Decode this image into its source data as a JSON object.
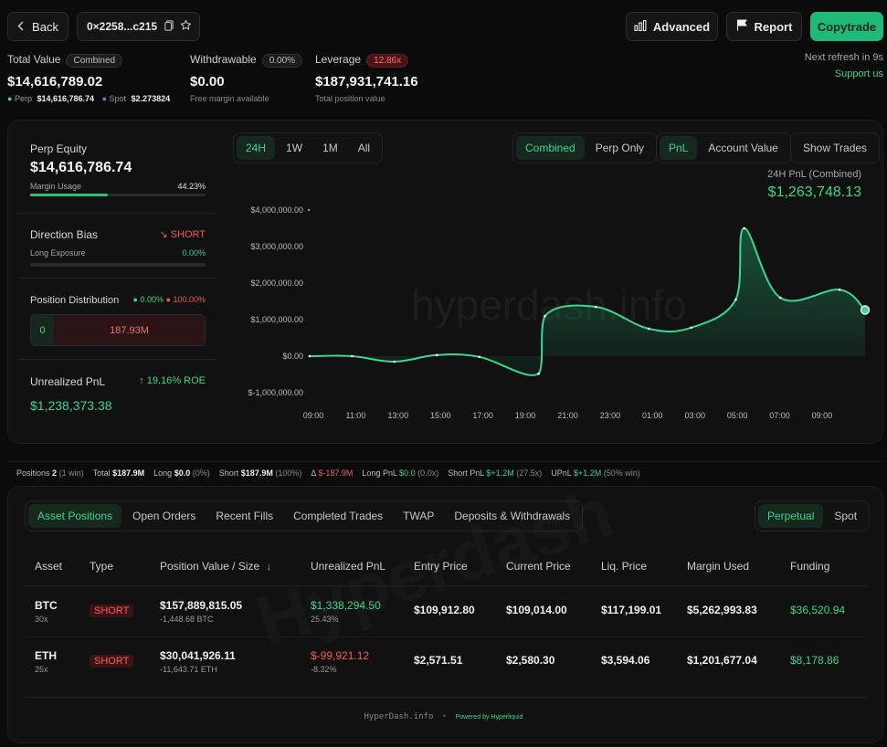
{
  "header": {
    "back_label": "Back",
    "address": "0×2258...c215",
    "advanced_label": "Advanced",
    "report_label": "Report",
    "copytrade_label": "Copytrade",
    "refresh_text": "Next refresh in 9s",
    "support_text": "Support us"
  },
  "summary": {
    "total_value_label": "Total Value",
    "total_value_pill": "Combined",
    "total_value": "$14,616,789.02",
    "perp_label": "Perp",
    "perp_value": "$14,616,786.74",
    "spot_label": "Spot",
    "spot_value": "$2.273824",
    "withdrawable_label": "Withdrawable",
    "withdrawable_pill": "0.00%",
    "withdrawable_value": "$0.00",
    "withdrawable_sub": "Free margin available",
    "leverage_label": "Leverage",
    "leverage_pill": "12.86x",
    "leverage_value": "$187,931,741.16",
    "leverage_sub": "Total position value"
  },
  "left_panel": {
    "perp_equity_label": "Perp Equity",
    "perp_equity_value": "$14,616,786.74",
    "margin_usage_label": "Margin Usage",
    "margin_usage_value": "44.23%",
    "margin_usage_fraction": 0.4423,
    "direction_bias_label": "Direction Bias",
    "direction_bias_value": "SHORT",
    "long_exposure_label": "Long Exposure",
    "long_exposure_value": "0.00%",
    "position_dist_label": "Position Distribution",
    "dist_long_pct": "0.00%",
    "dist_short_pct": "100.00%",
    "dist_long_amount": "0",
    "dist_short_amount": "187.93M",
    "unrealized_label": "Unrealized PnL",
    "roe_text": "19.16% ROE",
    "unrealized_value": "$1,238,373.38"
  },
  "chart_controls": {
    "ranges": [
      "24H",
      "1W",
      "1M",
      "All"
    ],
    "active_range": "24H",
    "modes": [
      "Combined",
      "Perp Only"
    ],
    "active_mode": "Combined",
    "metrics": [
      "PnL",
      "Account Value"
    ],
    "active_metric": "PnL",
    "show_trades_label": "Show Trades",
    "pnl_caption": "24H PnL (Combined)",
    "pnl_value": "$1,263,748.13",
    "watermark": "hyperdash.info"
  },
  "chart_data": {
    "type": "area",
    "title": "",
    "xlabel": "",
    "ylabel": "",
    "ylim": [
      -1000000,
      4000000
    ],
    "yticks": [
      "$4,000,000.00",
      "$3,000,000.00",
      "$2,000,000.00",
      "$1,000,000.00",
      "$0.00",
      "$-1,000,000.00"
    ],
    "xticks": [
      "09:00",
      "11:00",
      "13:00",
      "15:00",
      "17:00",
      "19:00",
      "21:00",
      "23:00",
      "01:00",
      "03:00",
      "05:00",
      "07:00",
      "09:00"
    ],
    "series": [
      {
        "x": [
          0,
          2,
          4,
          6,
          8,
          10.8,
          11.1,
          13.5,
          16,
          18,
          20.1,
          20.5,
          22.2,
          25,
          26.2
        ],
        "values": [
          0,
          0,
          -150000,
          30000,
          -20000,
          -480000,
          1100000,
          1350000,
          750000,
          780000,
          1550000,
          3500000,
          1600000,
          1820000,
          1263748
        ]
      }
    ],
    "color": "#3dd68c"
  },
  "stats_bar": {
    "positions_label": "Positions",
    "positions_value": "2",
    "positions_sub": "(1 win)",
    "total_label": "Total",
    "total_value": "$187.9M",
    "long_label": "Long",
    "long_value": "$0.0",
    "long_sub": "(0%)",
    "short_label": "Short",
    "short_value": "$187.9M",
    "short_sub": "(100%)",
    "delta_label": "Δ",
    "delta_value": "$-187.9M",
    "longpnl_label": "Long PnL",
    "longpnl_value": "$0.0",
    "longpnl_sub": "(0.0x)",
    "shortpnl_label": "Short PnL",
    "shortpnl_value": "$+1.2M",
    "shortpnl_sub": "(27.5x)",
    "upnl_label": "UPnL",
    "upnl_value": "$+1.2M",
    "upnl_sub": "(50% win)"
  },
  "tabs": [
    "Asset Positions",
    "Open Orders",
    "Recent Fills",
    "Completed Trades",
    "TWAP",
    "Deposits & Withdrawals"
  ],
  "active_tab": "Asset Positions",
  "market_tabs": [
    "Perpetual",
    "Spot"
  ],
  "active_market": "Perpetual",
  "table": {
    "headers": [
      "Asset",
      "Type",
      "Position Value / Size",
      "Unrealized PnL",
      "Entry Price",
      "Current Price",
      "Liq. Price",
      "Margin Used",
      "Funding"
    ],
    "rows": [
      {
        "asset": "BTC",
        "leverage": "30x",
        "type": "SHORT",
        "value": "$157,889,815.05",
        "size": "-1,448.68 BTC",
        "upnl": "$1,338,294.50",
        "upnl_pct": "25.43%",
        "entry": "$109,912.80",
        "current": "$109,014.00",
        "liq": "$117,199.01",
        "margin": "$5,262,993.83",
        "funding": "$36,520.94"
      },
      {
        "asset": "ETH",
        "leverage": "25x",
        "type": "SHORT",
        "value": "$30,041,926.11",
        "size": "-11,643.71 ETH",
        "upnl": "$-99,921.12",
        "upnl_pct": "-8.32%",
        "entry": "$2,571.51",
        "current": "$2,580.30",
        "liq": "$3,594.06",
        "margin": "$1,201,677.04",
        "funding": "$8,178.86"
      }
    ],
    "watermark": "Hyperdash"
  },
  "footer": {
    "site": "HyperDash.info",
    "powered": "Powered by Hyperliquid"
  }
}
